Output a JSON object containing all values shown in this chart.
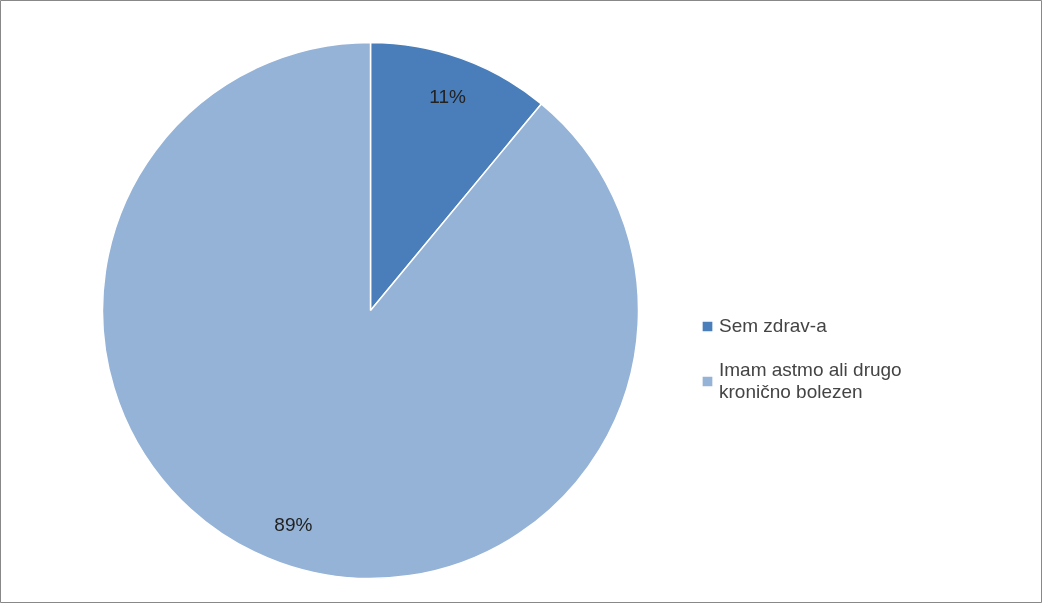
{
  "chart_data": {
    "type": "pie",
    "categories": [
      "Sem zdrav-a",
      "Imam astmo ali drugo kronično bolezen"
    ],
    "values": [
      11,
      89
    ],
    "colors": [
      "#4a7ebb",
      "#95b3d7"
    ],
    "value_labels": [
      "11%",
      "89%"
    ],
    "legend": "right"
  }
}
